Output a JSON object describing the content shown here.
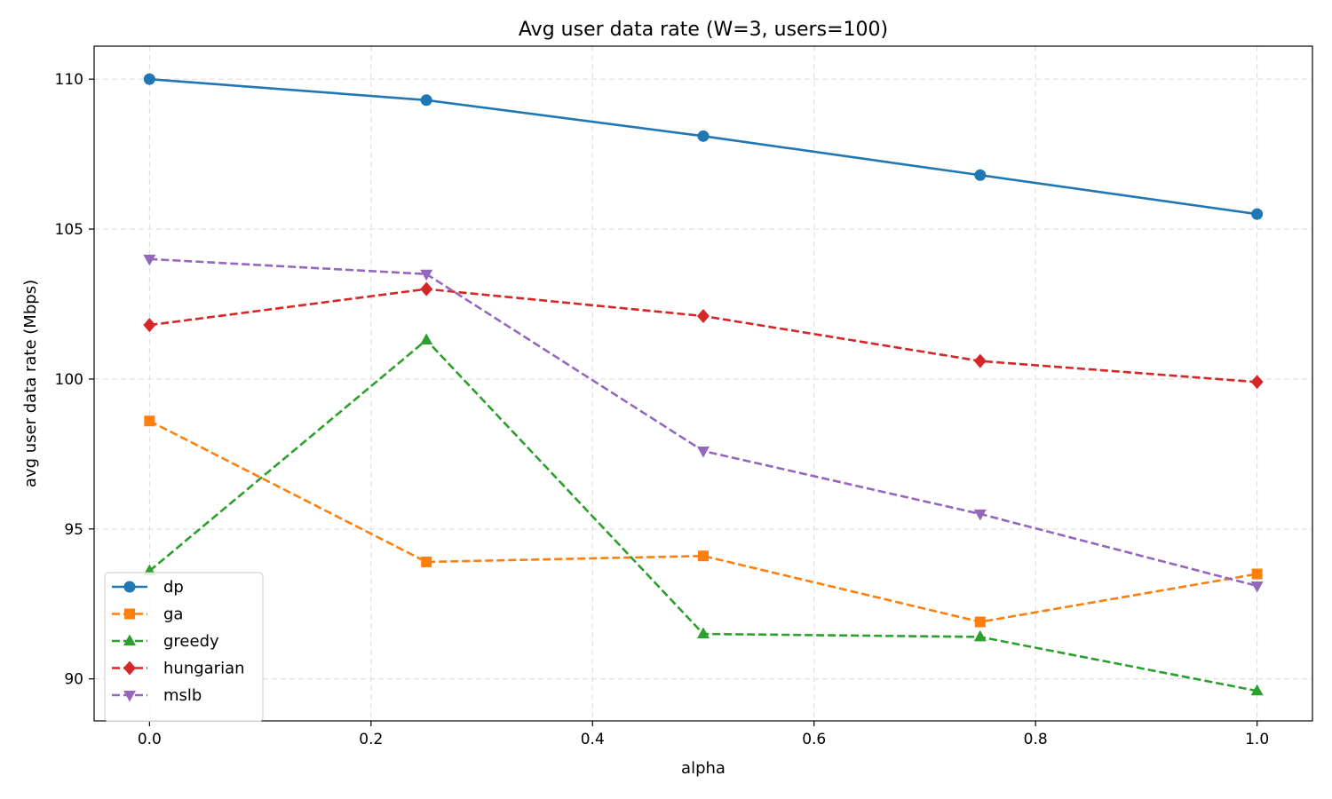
{
  "chart_data": {
    "type": "line",
    "title": "Avg user data rate (W=3, users=100)",
    "xlabel": "alpha",
    "ylabel": "avg user data rate (Mbps)",
    "x": [
      0.0,
      0.25,
      0.5,
      0.75,
      1.0
    ],
    "xlim": [
      -0.05,
      1.05
    ],
    "ylim": [
      88.6,
      111.1
    ],
    "xticks": [
      0.0,
      0.2,
      0.4,
      0.6,
      0.8,
      1.0
    ],
    "xtick_labels": [
      "0.0",
      "0.2",
      "0.4",
      "0.6",
      "0.8",
      "1.0"
    ],
    "yticks": [
      90,
      95,
      100,
      105,
      110
    ],
    "ytick_labels": [
      "90",
      "95",
      "100",
      "105",
      "110"
    ],
    "grid": true,
    "legend_position": "lower-left",
    "series": [
      {
        "name": "dp",
        "values": [
          110.0,
          109.3,
          108.1,
          106.8,
          105.5
        ],
        "color": "#1f77b4",
        "marker": "circle",
        "linestyle": "solid"
      },
      {
        "name": "ga",
        "values": [
          98.6,
          93.9,
          94.1,
          91.9,
          93.5
        ],
        "color": "#ff7f0e",
        "marker": "square",
        "linestyle": "dashed"
      },
      {
        "name": "greedy",
        "values": [
          93.6,
          101.3,
          91.5,
          91.4,
          89.6
        ],
        "color": "#2ca02c",
        "marker": "triangle-up",
        "linestyle": "dashed"
      },
      {
        "name": "hungarian",
        "values": [
          101.8,
          103.0,
          102.1,
          100.6,
          99.9
        ],
        "color": "#d62728",
        "marker": "diamond",
        "linestyle": "dashed"
      },
      {
        "name": "mslb",
        "values": [
          104.0,
          103.5,
          97.6,
          95.5,
          93.1
        ],
        "color": "#9467bd",
        "marker": "triangle-down",
        "linestyle": "dashed"
      }
    ]
  }
}
